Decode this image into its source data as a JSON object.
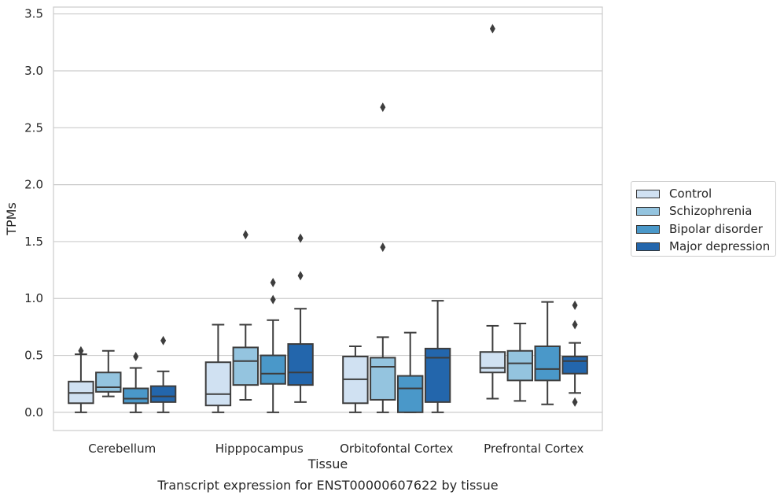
{
  "chart_data": {
    "type": "box",
    "title": "",
    "caption": "Transcript expression for ENST00000607622 by tissue",
    "xlabel": "Tissue",
    "ylabel": "TPMs",
    "ylim": [
      -0.16,
      3.56
    ],
    "yticks": [
      0.0,
      0.5,
      1.0,
      1.5,
      2.0,
      2.5,
      3.0,
      3.5
    ],
    "ytick_labels": [
      "0.0",
      "0.5",
      "1.0",
      "1.5",
      "2.0",
      "2.5",
      "3.0",
      "3.5"
    ],
    "grid": "horizontal",
    "legend_position": "right",
    "categories": [
      "Cerebellum",
      "Hipppocampus",
      "Orbitofontal Cortex",
      "Prefrontal Cortex"
    ],
    "series": [
      {
        "name": "Control",
        "color": "#d0e1f2",
        "boxes": [
          {
            "whislo": 0.0,
            "q1": 0.08,
            "med": 0.17,
            "q3": 0.27,
            "whishi": 0.51,
            "fliers": [
              0.54
            ]
          },
          {
            "whislo": 0.0,
            "q1": 0.06,
            "med": 0.16,
            "q3": 0.44,
            "whishi": 0.77,
            "fliers": []
          },
          {
            "whislo": 0.0,
            "q1": 0.08,
            "med": 0.29,
            "q3": 0.49,
            "whishi": 0.58,
            "fliers": []
          },
          {
            "whislo": 0.12,
            "q1": 0.35,
            "med": 0.39,
            "q3": 0.53,
            "whishi": 0.76,
            "fliers": [
              3.37
            ]
          }
        ]
      },
      {
        "name": "Schizophrenia",
        "color": "#94c4df",
        "boxes": [
          {
            "whislo": 0.14,
            "q1": 0.18,
            "med": 0.22,
            "q3": 0.35,
            "whishi": 0.54,
            "fliers": []
          },
          {
            "whislo": 0.11,
            "q1": 0.24,
            "med": 0.45,
            "q3": 0.57,
            "whishi": 0.77,
            "fliers": [
              1.56
            ]
          },
          {
            "whislo": 0.0,
            "q1": 0.11,
            "med": 0.4,
            "q3": 0.48,
            "whishi": 0.66,
            "fliers": [
              1.45,
              2.68
            ]
          },
          {
            "whislo": 0.1,
            "q1": 0.28,
            "med": 0.43,
            "q3": 0.54,
            "whishi": 0.78,
            "fliers": []
          }
        ]
      },
      {
        "name": "Bipolar disorder",
        "color": "#4a98c9",
        "boxes": [
          {
            "whislo": 0.0,
            "q1": 0.08,
            "med": 0.12,
            "q3": 0.21,
            "whishi": 0.39,
            "fliers": [
              0.49
            ]
          },
          {
            "whislo": 0.0,
            "q1": 0.25,
            "med": 0.34,
            "q3": 0.5,
            "whishi": 0.81,
            "fliers": [
              0.99,
              1.14
            ]
          },
          {
            "whislo": 0.0,
            "q1": 0.0,
            "med": 0.21,
            "q3": 0.32,
            "whishi": 0.7,
            "fliers": []
          },
          {
            "whislo": 0.07,
            "q1": 0.28,
            "med": 0.38,
            "q3": 0.58,
            "whishi": 0.97,
            "fliers": []
          }
        ]
      },
      {
        "name": "Major depression",
        "color": "#2366ac",
        "boxes": [
          {
            "whislo": 0.0,
            "q1": 0.09,
            "med": 0.14,
            "q3": 0.23,
            "whishi": 0.36,
            "fliers": [
              0.63
            ]
          },
          {
            "whislo": 0.09,
            "q1": 0.24,
            "med": 0.35,
            "q3": 0.6,
            "whishi": 0.91,
            "fliers": [
              1.2,
              1.53
            ]
          },
          {
            "whislo": 0.0,
            "q1": 0.09,
            "med": 0.48,
            "q3": 0.56,
            "whishi": 0.98,
            "fliers": []
          },
          {
            "whislo": 0.17,
            "q1": 0.34,
            "med": 0.45,
            "q3": 0.49,
            "whishi": 0.61,
            "fliers": [
              0.09,
              0.77,
              0.94
            ]
          }
        ]
      }
    ]
  }
}
